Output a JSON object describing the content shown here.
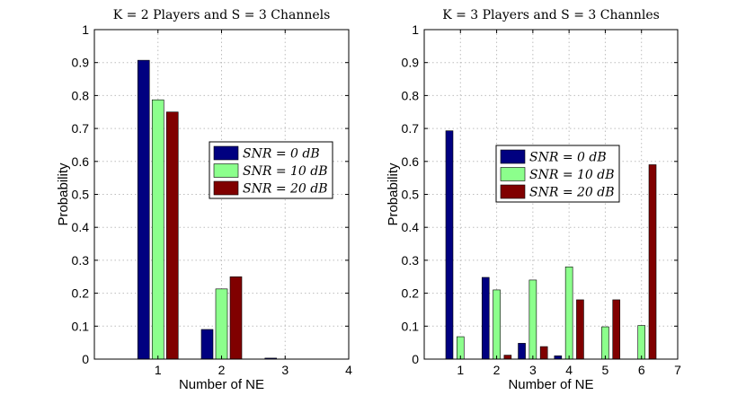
{
  "chart_data": [
    {
      "type": "bar",
      "title": "K = 2 Players and S = 3 Channels",
      "xlabel": "Number of NE",
      "ylabel": "Probability",
      "categories": [
        "1",
        "2",
        "3"
      ],
      "xticks": [
        "1",
        "2",
        "3",
        "4"
      ],
      "xlim": [
        0,
        4
      ],
      "ylim": [
        0,
        1
      ],
      "yticks": [
        "0",
        "0.1",
        "0.2",
        "0.3",
        "0.4",
        "0.5",
        "0.6",
        "0.7",
        "0.8",
        "0.9",
        "1"
      ],
      "grid": true,
      "legend_position": "center-right",
      "series": [
        {
          "name": "SNR = 0 dB",
          "snr": "0",
          "color": "#000080",
          "values": [
            0.907,
            0.09,
            0.003
          ]
        },
        {
          "name": "SNR = 10 dB",
          "snr": "10",
          "color": "#8cff8c",
          "values": [
            0.787,
            0.213,
            0.0
          ]
        },
        {
          "name": "SNR = 20 dB",
          "snr": "20",
          "color": "#800000",
          "values": [
            0.75,
            0.25,
            0.0
          ]
        }
      ]
    },
    {
      "type": "bar",
      "title": "K = 3 Players and S = 3 Channles",
      "xlabel": "Number of NE",
      "ylabel": "Probability",
      "categories": [
        "1",
        "2",
        "3",
        "4",
        "5",
        "6"
      ],
      "xticks": [
        "1",
        "2",
        "3",
        "4",
        "5",
        "6",
        "7"
      ],
      "xlim": [
        0,
        7
      ],
      "ylim": [
        0,
        1
      ],
      "yticks": [
        "0",
        "0.1",
        "0.2",
        "0.3",
        "0.4",
        "0.5",
        "0.6",
        "0.7",
        "0.8",
        "0.9",
        "1"
      ],
      "grid": true,
      "legend_position": "center",
      "series": [
        {
          "name": "SNR = 0 dB",
          "snr": "0",
          "color": "#000080",
          "values": [
            0.693,
            0.248,
            0.048,
            0.01,
            0.0,
            0.0
          ]
        },
        {
          "name": "SNR = 10 dB",
          "snr": "10",
          "color": "#8cff8c",
          "values": [
            0.068,
            0.21,
            0.24,
            0.28,
            0.098,
            0.102
          ]
        },
        {
          "name": "SNR = 20 dB",
          "snr": "20",
          "color": "#800000",
          "values": [
            0.0,
            0.012,
            0.038,
            0.18,
            0.18,
            0.59
          ]
        }
      ]
    }
  ]
}
